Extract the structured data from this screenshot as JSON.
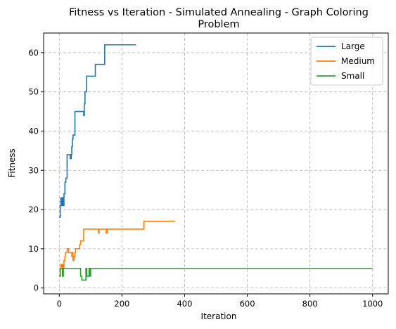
{
  "chart_data": {
    "type": "line",
    "title_line1": "Fitness vs Iteration - Simulated Annealing - Graph Coloring",
    "title_line2": "Problem",
    "xlabel": "Iteration",
    "ylabel": "Fitness",
    "xlim": [
      -50,
      1050
    ],
    "ylim": [
      -1.5,
      65
    ],
    "xticks": [
      0,
      200,
      400,
      600,
      800,
      1000
    ],
    "yticks": [
      0,
      10,
      20,
      30,
      40,
      50,
      60
    ],
    "grid": true,
    "legend_position": "top-right",
    "series": [
      {
        "name": "Large",
        "color": "#1f77b4",
        "points": [
          [
            0,
            18
          ],
          [
            3,
            18
          ],
          [
            3,
            21
          ],
          [
            5,
            21
          ],
          [
            5,
            23
          ],
          [
            8,
            23
          ],
          [
            8,
            21
          ],
          [
            10,
            21
          ],
          [
            10,
            23
          ],
          [
            12,
            23
          ],
          [
            12,
            21
          ],
          [
            15,
            21
          ],
          [
            15,
            24
          ],
          [
            18,
            24
          ],
          [
            18,
            27
          ],
          [
            21,
            27
          ],
          [
            21,
            28
          ],
          [
            25,
            28
          ],
          [
            25,
            34
          ],
          [
            35,
            34
          ],
          [
            35,
            33
          ],
          [
            38,
            33
          ],
          [
            38,
            34
          ],
          [
            40,
            34
          ],
          [
            40,
            36
          ],
          [
            42,
            36
          ],
          [
            42,
            38
          ],
          [
            44,
            38
          ],
          [
            44,
            39
          ],
          [
            50,
            39
          ],
          [
            50,
            45
          ],
          [
            78,
            45
          ],
          [
            78,
            44
          ],
          [
            80,
            44
          ],
          [
            80,
            47
          ],
          [
            82,
            47
          ],
          [
            82,
            50
          ],
          [
            87,
            50
          ],
          [
            87,
            54
          ],
          [
            115,
            54
          ],
          [
            115,
            57
          ],
          [
            145,
            57
          ],
          [
            145,
            62
          ],
          [
            245,
            62
          ]
        ]
      },
      {
        "name": "Medium",
        "color": "#ff7f0e",
        "points": [
          [
            0,
            3
          ],
          [
            3,
            3
          ],
          [
            3,
            5
          ],
          [
            5,
            5
          ],
          [
            5,
            6
          ],
          [
            8,
            6
          ],
          [
            8,
            5
          ],
          [
            10,
            5
          ],
          [
            10,
            6
          ],
          [
            13,
            6
          ],
          [
            13,
            5
          ],
          [
            15,
            5
          ],
          [
            15,
            7
          ],
          [
            18,
            7
          ],
          [
            18,
            8
          ],
          [
            20,
            8
          ],
          [
            20,
            9
          ],
          [
            25,
            9
          ],
          [
            25,
            10
          ],
          [
            30,
            10
          ],
          [
            30,
            9
          ],
          [
            40,
            9
          ],
          [
            40,
            8
          ],
          [
            42,
            8
          ],
          [
            42,
            9
          ],
          [
            44,
            9
          ],
          [
            44,
            7
          ],
          [
            47,
            7
          ],
          [
            47,
            8
          ],
          [
            50,
            8
          ],
          [
            50,
            9
          ],
          [
            52,
            9
          ],
          [
            52,
            10
          ],
          [
            65,
            10
          ],
          [
            65,
            11
          ],
          [
            68,
            11
          ],
          [
            68,
            12
          ],
          [
            78,
            12
          ],
          [
            78,
            15
          ],
          [
            125,
            15
          ],
          [
            125,
            14
          ],
          [
            127,
            14
          ],
          [
            127,
            15
          ],
          [
            150,
            15
          ],
          [
            150,
            14
          ],
          [
            153,
            14
          ],
          [
            153,
            15
          ],
          [
            270,
            15
          ],
          [
            270,
            17
          ],
          [
            370,
            17
          ]
        ]
      },
      {
        "name": "Small",
        "color": "#2ca02c",
        "points": [
          [
            0,
            3
          ],
          [
            3,
            3
          ],
          [
            3,
            5
          ],
          [
            10,
            5
          ],
          [
            10,
            3
          ],
          [
            13,
            3
          ],
          [
            13,
            5
          ],
          [
            68,
            5
          ],
          [
            68,
            3
          ],
          [
            72,
            3
          ],
          [
            72,
            2
          ],
          [
            85,
            2
          ],
          [
            85,
            5
          ],
          [
            88,
            5
          ],
          [
            88,
            3
          ],
          [
            95,
            3
          ],
          [
            95,
            5
          ],
          [
            98,
            5
          ],
          [
            98,
            3
          ],
          [
            100,
            3
          ],
          [
            100,
            5
          ],
          [
            1000,
            5
          ]
        ]
      }
    ]
  }
}
